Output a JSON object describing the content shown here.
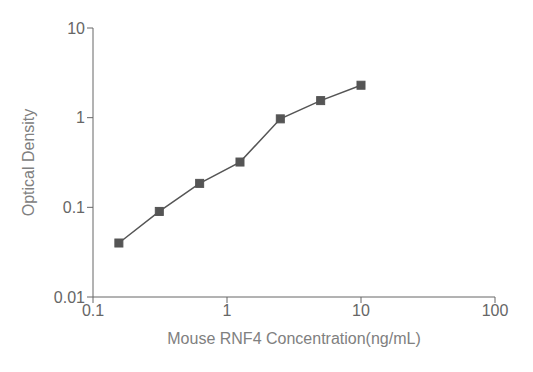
{
  "chart_data": {
    "type": "line",
    "x": [
      0.156,
      0.3125,
      0.625,
      1.25,
      2.5,
      5.0,
      10.0
    ],
    "values": [
      0.04,
      0.09,
      0.185,
      0.32,
      0.97,
      1.55,
      2.3
    ],
    "xlabel": "Mouse RNF4 Concentration(ng/mL)",
    "ylabel": "Optical Density",
    "xlim": [
      0.1,
      100
    ],
    "ylim": [
      0.01,
      10
    ],
    "xticks": [
      0.1,
      1,
      10,
      100
    ],
    "yticks": [
      0.01,
      0.1,
      1,
      10
    ],
    "log": true,
    "grid": false,
    "color": "#555555",
    "marker": "square"
  }
}
